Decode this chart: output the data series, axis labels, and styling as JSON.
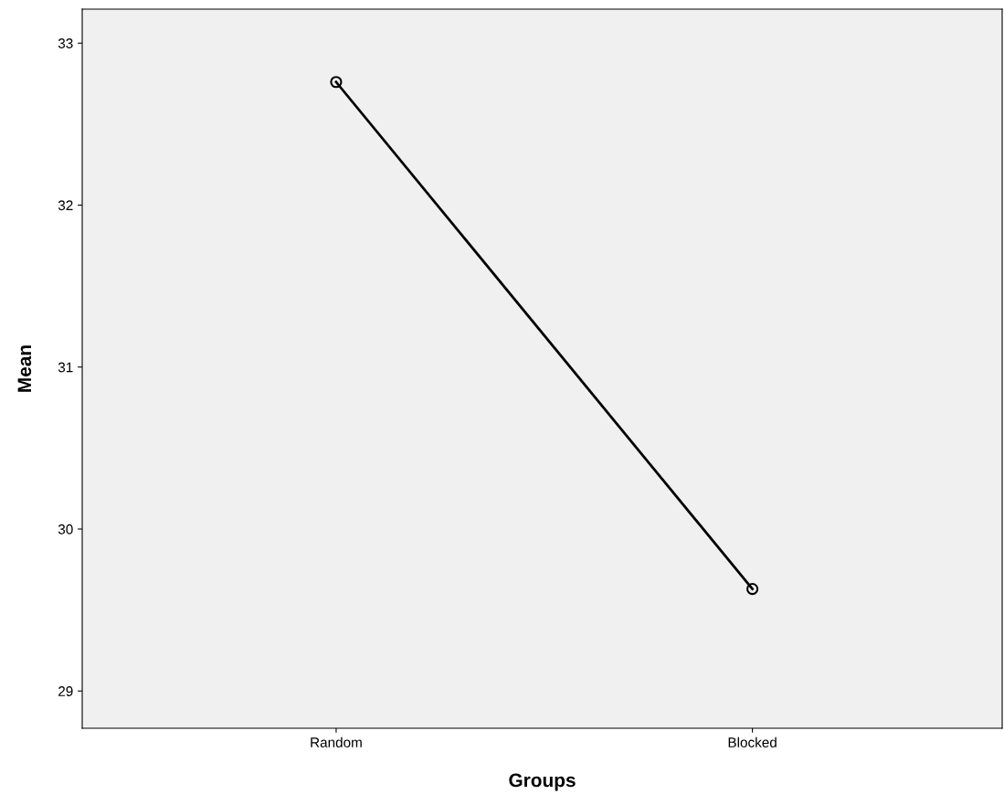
{
  "chart_data": {
    "type": "line",
    "xlabel": "Groups",
    "ylabel": "Mean",
    "categories": [
      "Random",
      "Blocked"
    ],
    "series": [
      {
        "color": "#000000",
        "values": [
          32.76,
          29.63
        ]
      }
    ],
    "ylim": [
      28.77,
      33.21
    ],
    "yticks": [
      29,
      30,
      31,
      32,
      33
    ],
    "marker": "circle",
    "line_style": "solid",
    "grid": false,
    "legend": false
  }
}
